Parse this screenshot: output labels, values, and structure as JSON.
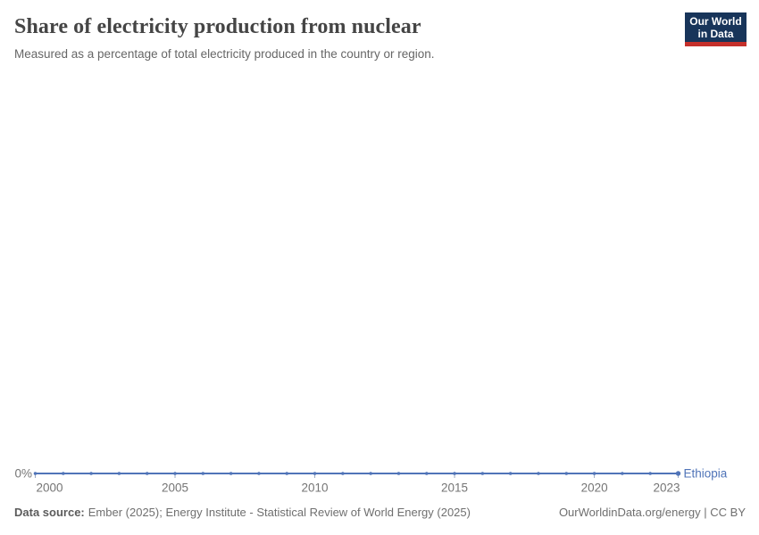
{
  "header": {
    "title": "Share of electricity production from nuclear",
    "subtitle": "Measured as a percentage of total electricity produced in the country or region.",
    "logo": {
      "line1": "Our World",
      "line2": "in Data",
      "bg_color": "#18355a",
      "bar_color": "#c5302b"
    }
  },
  "chart_data": {
    "type": "line",
    "title": "Share of electricity production from nuclear",
    "subtitle": "Measured as a percentage of total electricity produced in the country or region.",
    "x": [
      2000,
      2001,
      2002,
      2003,
      2004,
      2005,
      2006,
      2007,
      2008,
      2009,
      2010,
      2011,
      2012,
      2013,
      2014,
      2015,
      2016,
      2017,
      2018,
      2019,
      2020,
      2021,
      2022,
      2023
    ],
    "series": [
      {
        "name": "Ethiopia",
        "color": "#5074b8",
        "values": [
          0,
          0,
          0,
          0,
          0,
          0,
          0,
          0,
          0,
          0,
          0,
          0,
          0,
          0,
          0,
          0,
          0,
          0,
          0,
          0,
          0,
          0,
          0,
          0
        ]
      }
    ],
    "xlim": [
      2000,
      2023
    ],
    "x_ticks": [
      2000,
      2005,
      2010,
      2015,
      2020,
      2023
    ],
    "x_tick_labels": [
      "2000",
      "2005",
      "2010",
      "2015",
      "2020",
      "2023"
    ],
    "y_axis_label": "0%",
    "y_ticks": [
      "0%"
    ],
    "grid": false,
    "legend_position": "end-of-line",
    "marker": "dot-every-year",
    "axis_text_color": "#757575",
    "tick_color": "#9aa8c2"
  },
  "footer": {
    "source_label": "Data source:",
    "source_text": "Ember (2025); Energy Institute - Statistical Review of World Energy (2025)",
    "right_text": "OurWorldinData.org/energy | CC BY"
  }
}
